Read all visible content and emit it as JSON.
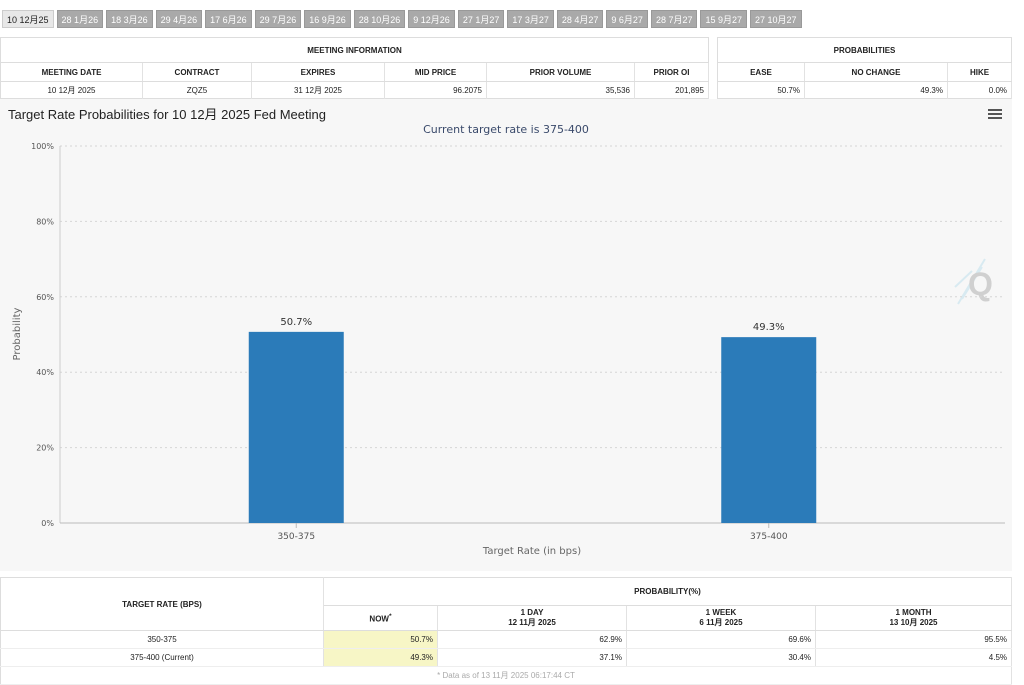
{
  "tabs": [
    "10 12月25",
    "28 1月26",
    "18 3月26",
    "29 4月26",
    "17 6月26",
    "29 7月26",
    "16 9月26",
    "28 10月26",
    "9 12月26",
    "27 1月27",
    "17 3月27",
    "28 4月27",
    "9 6月27",
    "28 7月27",
    "15 9月27",
    "27 10月27"
  ],
  "meeting_info": {
    "title": "MEETING INFORMATION",
    "columns": [
      "MEETING DATE",
      "CONTRACT",
      "EXPIRES",
      "MID PRICE",
      "PRIOR VOLUME",
      "PRIOR OI"
    ],
    "row": [
      "10 12月 2025",
      "ZQZ5",
      "31 12月 2025",
      "96.2075",
      "35,536",
      "201,895"
    ]
  },
  "probabilities": {
    "title": "PROBABILITIES",
    "columns": [
      "EASE",
      "NO CHANGE",
      "HIKE"
    ],
    "row": [
      "50.7%",
      "49.3%",
      "0.0%"
    ]
  },
  "chart_data": {
    "type": "bar",
    "title": "Target Rate Probabilities for 10 12月 2025 Fed Meeting",
    "subtitle": "Current target rate is 375-400",
    "xlabel": "Target Rate (in bps)",
    "ylabel": "Probability",
    "categories": [
      "350-375",
      "375-400"
    ],
    "values": [
      50.7,
      49.3
    ],
    "data_labels": [
      "50.7%",
      "49.3%"
    ],
    "ylim": [
      0,
      100
    ],
    "yticks": [
      "0%",
      "20%",
      "40%",
      "60%",
      "80%",
      "100%"
    ],
    "grid": true,
    "bar_color": "#2b7bb9"
  },
  "bottom_table": {
    "row_header": "TARGET RATE (BPS)",
    "group_header": "PROBABILITY(%)",
    "columns": [
      {
        "label": "NOW",
        "sup": "*",
        "date": ""
      },
      {
        "label": "1 DAY",
        "date": "12 11月 2025"
      },
      {
        "label": "1 WEEK",
        "date": "6 11月 2025"
      },
      {
        "label": "1 MONTH",
        "date": "13 10月 2025"
      }
    ],
    "rows": [
      {
        "rate": "350-375",
        "values": [
          "50.7%",
          "62.9%",
          "69.6%",
          "95.5%"
        ]
      },
      {
        "rate": "375-400 (Current)",
        "values": [
          "49.3%",
          "37.1%",
          "30.4%",
          "4.5%"
        ]
      }
    ],
    "footnote": "* Data as of 13 11月 2025 06:17:44 CT"
  }
}
